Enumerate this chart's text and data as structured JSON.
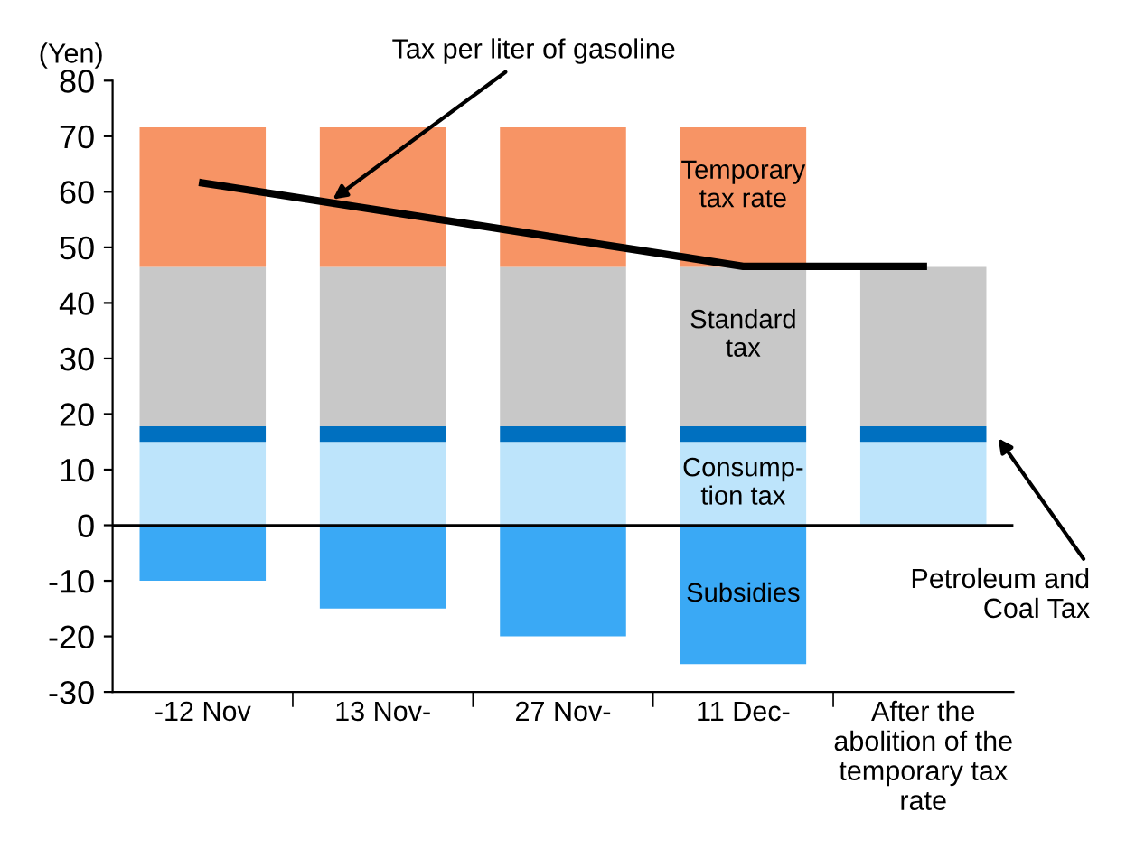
{
  "chart_data": {
    "type": "bar",
    "stacked": true,
    "ylabel": "(Yen)",
    "categories": [
      "-12 Nov",
      "13 Nov-",
      "27 Nov-",
      "11 Dec-",
      "After the\nabolition of the\ntemporary tax\nrate"
    ],
    "series": [
      {
        "name": "Consump-\ntion tax",
        "color": "#bde4fb",
        "values": [
          15,
          15,
          15,
          15,
          15
        ]
      },
      {
        "name": "Petroleum and\nCoal Tax",
        "color": "#0070c0",
        "values": [
          2.8,
          2.8,
          2.8,
          2.8,
          2.8
        ]
      },
      {
        "name": "Standard\ntax",
        "color": "#c8c8c8",
        "values": [
          28.7,
          28.7,
          28.7,
          28.7,
          28.7
        ]
      },
      {
        "name": "Temporary\ntax rate",
        "color": "#f79465",
        "values": [
          25.1,
          25.1,
          25.1,
          25.1,
          null
        ]
      },
      {
        "name": "Subsidies",
        "color": "#3aa9f5",
        "values": [
          -10,
          -15,
          -20,
          -25,
          null
        ]
      },
      {
        "name": "Tax per liter of gasoline",
        "type": "line",
        "color": "#000000",
        "values": [
          61.6,
          56.6,
          51.6,
          46.6,
          46.6
        ]
      }
    ],
    "ylim": [
      -30,
      80
    ],
    "yticks": [
      -30,
      -20,
      -10,
      0,
      10,
      20,
      30,
      40,
      50,
      60,
      70,
      80
    ],
    "ref_lines": [
      {
        "axis": "y",
        "value": 0,
        "color": "#000000",
        "line_style": "solid"
      }
    ],
    "grid": false,
    "legend": false,
    "marker": "none",
    "line_style": "solid"
  }
}
